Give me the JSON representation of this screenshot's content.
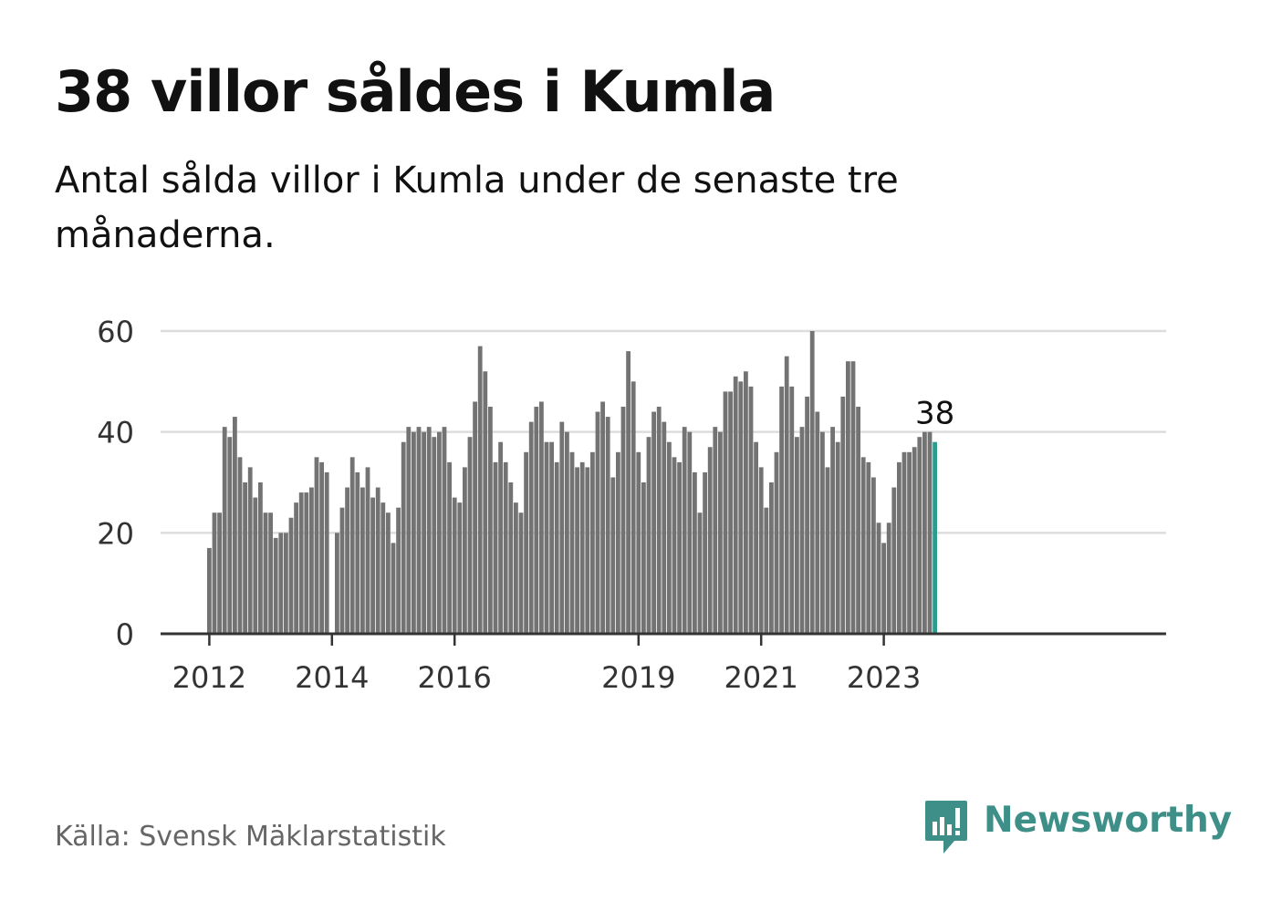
{
  "header": {
    "title": "38 villor såldes i Kumla",
    "subtitle": "Antal sålda villor i Kumla under de senaste tre månaderna."
  },
  "footer": {
    "source": "Källa: Svensk Mäklarstatistik",
    "brand_name": "Newsworthy",
    "brand_icon": "bar-chart-speech-bubble-icon"
  },
  "colors": {
    "bar": "#737373",
    "highlight": "#2a9d8f",
    "grid": "#dddddd",
    "axis": "#333333",
    "brand": "#3e8f88"
  },
  "chart_data": {
    "type": "bar",
    "title": "",
    "xlabel": "",
    "ylabel": "",
    "ylim": [
      0,
      60
    ],
    "yticks": [
      0,
      20,
      40,
      60
    ],
    "grid": true,
    "start_month": "2012-01",
    "x_tick_labels": [
      {
        "label": "2012",
        "month": "2012-01"
      },
      {
        "label": "2014",
        "month": "2014-01"
      },
      {
        "label": "2016",
        "month": "2016-01"
      },
      {
        "label": "2019",
        "month": "2019-01"
      },
      {
        "label": "2021",
        "month": "2021-01"
      },
      {
        "label": "2023",
        "month": "2023-01"
      }
    ],
    "highlight_label": "38",
    "series": [
      {
        "values": [
          17,
          24,
          24,
          41,
          39,
          43,
          35,
          30,
          33,
          27,
          30,
          24,
          24,
          19,
          20,
          20,
          23,
          26,
          28,
          28,
          29,
          35,
          34,
          32,
          0,
          20,
          25,
          29,
          35,
          32,
          29,
          33,
          27,
          29,
          26,
          24,
          18,
          25,
          38,
          41,
          40,
          41,
          40,
          41,
          39,
          40,
          41,
          34,
          27,
          26,
          33,
          39,
          46,
          57,
          52,
          45,
          34,
          38,
          34,
          30,
          26,
          24,
          36,
          42,
          45,
          46,
          38,
          38,
          34,
          42,
          40,
          36,
          33,
          34,
          33,
          36,
          44,
          46,
          43,
          31,
          36,
          45,
          56,
          50,
          36,
          30,
          39,
          44,
          45,
          42,
          38,
          35,
          34,
          41,
          40,
          32,
          24,
          32,
          37,
          41,
          40,
          48,
          48,
          51,
          50,
          52,
          49,
          38,
          33,
          25,
          30,
          36,
          49,
          55,
          49,
          39,
          41,
          47,
          60,
          44,
          40,
          33,
          41,
          38,
          47,
          54,
          54,
          45,
          35,
          34,
          31,
          22,
          18,
          22,
          29,
          34,
          36,
          36,
          37,
          39,
          40,
          40,
          38
        ]
      }
    ]
  }
}
